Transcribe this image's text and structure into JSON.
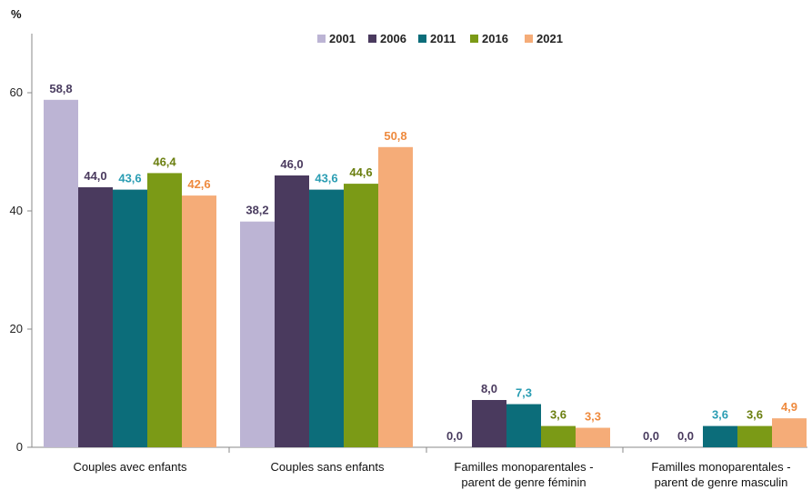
{
  "chart_data": {
    "type": "bar",
    "ylabel": "%",
    "ylim": [
      0,
      70
    ],
    "yticks": [
      0,
      20,
      40,
      60
    ],
    "grid": false,
    "legend_position": "top",
    "categories": [
      [
        "Couples avec enfants"
      ],
      [
        "Couples sans enfants"
      ],
      [
        "Familles monoparentales -",
        "parent de genre féminin"
      ],
      [
        "Familles monoparentales -",
        "parent de genre masculin"
      ]
    ],
    "series": [
      {
        "name": "2001",
        "color": "#bcb4d4",
        "label_color": "#4a3d60",
        "values": [
          58.8,
          38.2,
          0.0,
          0.0
        ],
        "labels": [
          "58,8",
          "38,2",
          "0,0",
          "0,0"
        ]
      },
      {
        "name": "2006",
        "color": "#4a3a5e",
        "label_color": "#4a3a5e",
        "values": [
          44.0,
          46.0,
          8.0,
          0.0
        ],
        "labels": [
          "44,0",
          "46,0",
          "8,0",
          "0,0"
        ]
      },
      {
        "name": "2011",
        "color": "#0c6d7a",
        "label_color": "#2a9db3",
        "values": [
          43.6,
          43.6,
          7.3,
          3.6
        ],
        "labels": [
          "43,6",
          "43,6",
          "7,3",
          "3,6"
        ]
      },
      {
        "name": "2016",
        "color": "#7b9a16",
        "label_color": "#6b7f10",
        "values": [
          46.4,
          44.6,
          3.6,
          3.6
        ],
        "labels": [
          "46,4",
          "44,6",
          "3,6",
          "3,6"
        ]
      },
      {
        "name": "2021",
        "color": "#f5ac78",
        "label_color": "#ee8a3e",
        "values": [
          42.6,
          50.8,
          3.3,
          4.9
        ],
        "labels": [
          "42,6",
          "50,8",
          "3,3",
          "4,9"
        ]
      }
    ]
  }
}
